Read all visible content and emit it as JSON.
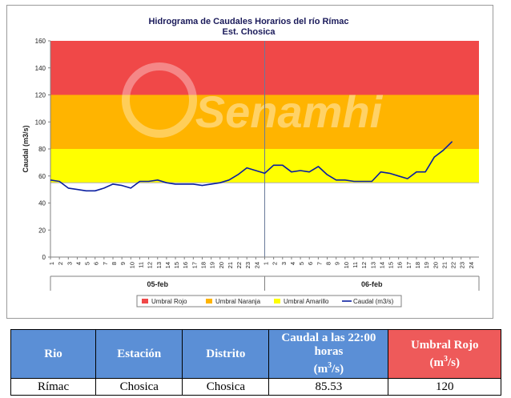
{
  "chart_data": {
    "type": "line",
    "title": "Hidrograma de Caudales Horarios del río Rímac",
    "subtitle": "Est. Chosica",
    "ylabel": "Caudal  (m3/s)",
    "ylim": [
      0,
      160
    ],
    "yticks": [
      "0",
      "20",
      "40",
      "60",
      "80",
      "100",
      "120",
      "140",
      "160"
    ],
    "watermark": "Senamhi",
    "day_labels": [
      "05-feb",
      "06-feb"
    ],
    "hour_labels": [
      "1",
      "2",
      "3",
      "4",
      "5",
      "6",
      "7",
      "8",
      "9",
      "10",
      "11",
      "12",
      "13",
      "14",
      "15",
      "16",
      "17",
      "18",
      "19",
      "20",
      "21",
      "22",
      "23",
      "24"
    ],
    "thresholds": {
      "amarillo": [
        55,
        80
      ],
      "naranja": [
        80,
        120
      ],
      "rojo": [
        120,
        160
      ]
    },
    "colors": {
      "rojo": "#f04848",
      "naranja": "#ffb400",
      "amarillo": "#ffff00",
      "caudal": "#0a1ea0"
    },
    "legend": {
      "placement": "bottom",
      "items": [
        "Umbral Rojo",
        "Umbral Naranja",
        "Umbral Amarillo",
        "Caudal (m3/s)"
      ]
    },
    "series": [
      {
        "name": "Caudal (m3/s)",
        "values": [
          57,
          56,
          51,
          50,
          49,
          49,
          51,
          54,
          53,
          51,
          56,
          56,
          57,
          55,
          54,
          54,
          54,
          53,
          54,
          55,
          57,
          61,
          66,
          64,
          62,
          68,
          68,
          63,
          64,
          63,
          67,
          61,
          57,
          57,
          56,
          56,
          56,
          63,
          62,
          60,
          58,
          63,
          63,
          74,
          79,
          85.53
        ]
      }
    ]
  },
  "table": {
    "headers": [
      "Rio",
      "Estación",
      "Distrito",
      "Caudal a las 22:00 horas",
      "Umbral Rojo"
    ],
    "header_units": [
      "",
      "",
      "",
      "(m3/s)",
      "(m3/s)"
    ],
    "row": [
      "Rímac",
      "Chosica",
      "Chosica",
      "85.53",
      "120"
    ]
  }
}
